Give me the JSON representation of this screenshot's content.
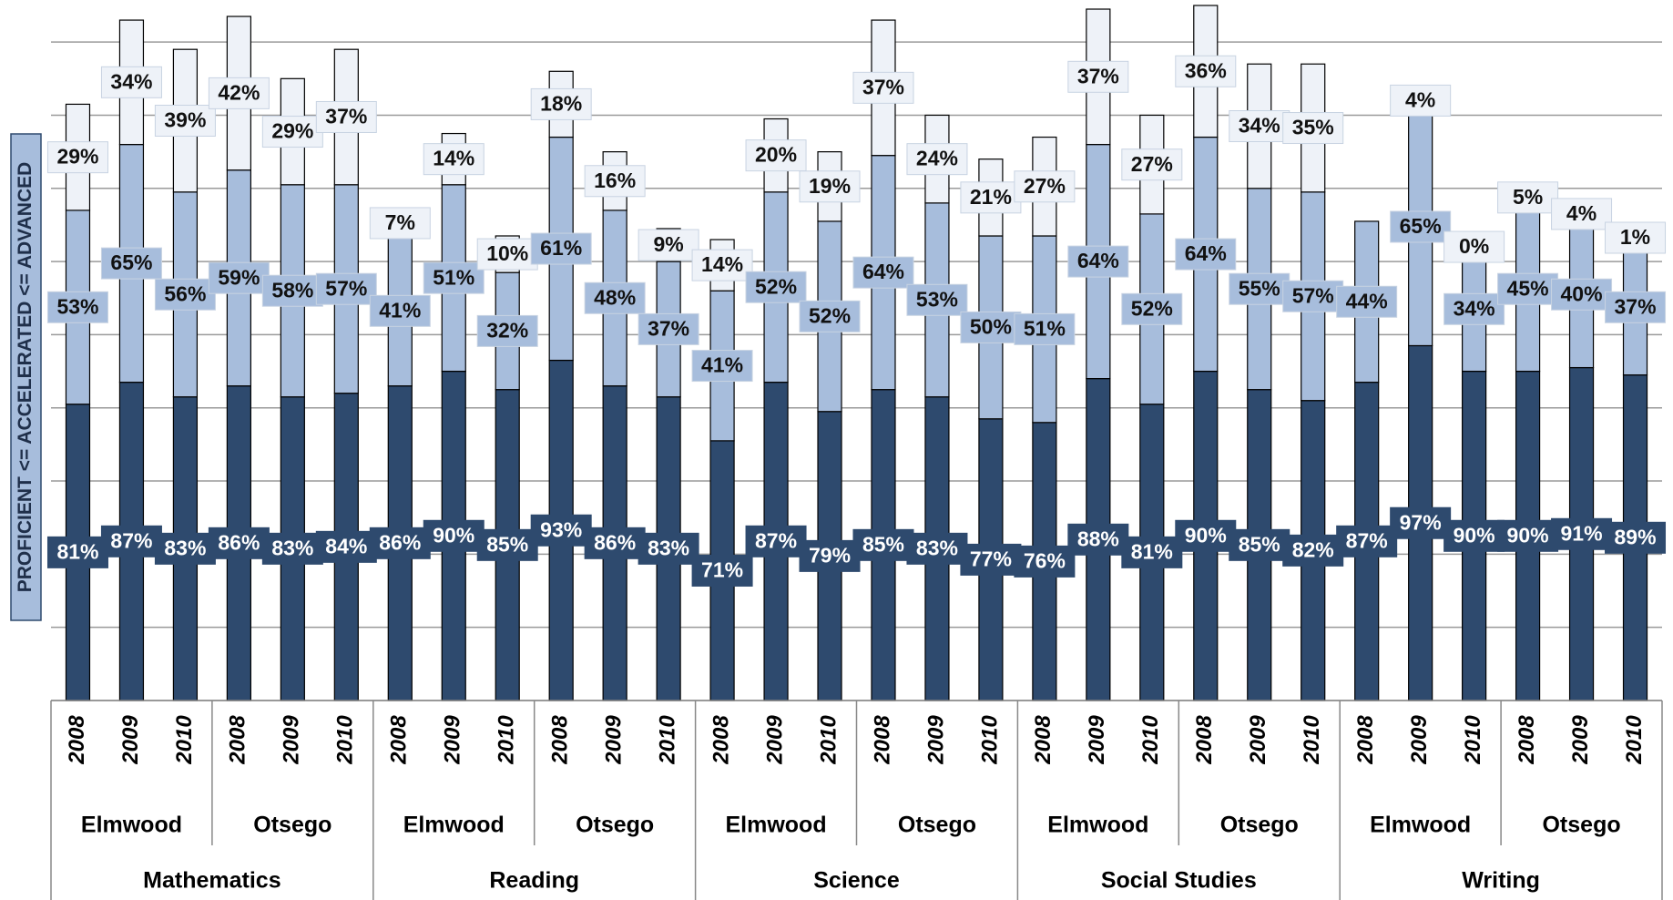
{
  "chart_data": {
    "type": "stacked_bar",
    "y_label": "PROFICIENT <= ACCELERATED <= ADVANCED",
    "categories": [
      "2008",
      "2009",
      "2010",
      "2008",
      "2009",
      "2010",
      "2008",
      "2009",
      "2010",
      "2008",
      "2009",
      "2010",
      "2008",
      "2009",
      "2010",
      "2008",
      "2009",
      "2010",
      "2008",
      "2009",
      "2010",
      "2008",
      "2009",
      "2010",
      "2008",
      "2009",
      "2010",
      "2008",
      "2009",
      "2010"
    ],
    "school_groups": [
      "Elmwood",
      "Otsego",
      "Elmwood",
      "Otsego",
      "Elmwood",
      "Otsego",
      "Elmwood",
      "Otsego",
      "Elmwood",
      "Otsego"
    ],
    "subject_groups": [
      "Mathematics",
      "Reading",
      "Science",
      "Social Studies",
      "Writing"
    ],
    "series": [
      {
        "color": "#2e4a6e",
        "values": [
          81,
          87,
          83,
          86,
          83,
          84,
          86,
          90,
          85,
          93,
          86,
          83,
          71,
          87,
          79,
          85,
          83,
          77,
          76,
          88,
          81,
          90,
          85,
          82,
          87,
          97,
          90,
          90,
          91,
          89
        ],
        "value_labels": [
          "81%",
          "87%",
          "83%",
          "86%",
          "83%",
          "84%",
          "86%",
          "90%",
          "85%",
          "93%",
          "86%",
          "83%",
          "71%",
          "87%",
          "79%",
          "85%",
          "83%",
          "77%",
          "76%",
          "88%",
          "81%",
          "90%",
          "85%",
          "82%",
          "87%",
          "97%",
          "90%",
          "90%",
          "91%",
          "89%"
        ]
      },
      {
        "color": "#a7bddc",
        "values": [
          53,
          65,
          56,
          59,
          58,
          57,
          41,
          51,
          32,
          61,
          48,
          37,
          41,
          52,
          52,
          64,
          53,
          50,
          51,
          64,
          52,
          64,
          55,
          57,
          44,
          65,
          34,
          45,
          40,
          37
        ],
        "value_labels": [
          "53%",
          "65%",
          "56%",
          "59%",
          "58%",
          "57%",
          "41%",
          "51%",
          "32%",
          "61%",
          "48%",
          "37%",
          "41%",
          "52%",
          "52%",
          "64%",
          "53%",
          "50%",
          "51%",
          "64%",
          "52%",
          "64%",
          "55%",
          "57%",
          "44%",
          "65%",
          "34%",
          "45%",
          "40%",
          "37%"
        ]
      },
      {
        "color": "#eef2f8",
        "values": [
          29,
          34,
          39,
          42,
          29,
          37,
          7,
          14,
          10,
          18,
          16,
          9,
          14,
          20,
          19,
          37,
          24,
          21,
          27,
          37,
          27,
          36,
          34,
          35,
          null,
          4,
          0,
          5,
          4,
          1
        ],
        "value_labels": [
          "29%",
          "34%",
          "39%",
          "42%",
          "29%",
          "37%",
          "7%",
          "14%",
          "10%",
          "18%",
          "16%",
          "9%",
          "14%",
          "20%",
          "19%",
          "37%",
          "24%",
          "21%",
          "27%",
          "37%",
          "27%",
          "36%",
          "34%",
          "35%",
          null,
          "4%",
          "0%",
          "5%",
          "4%",
          "1%"
        ]
      }
    ],
    "ylim": [
      0,
      190
    ],
    "yticks": [
      0,
      20,
      40,
      60,
      80,
      100,
      120,
      140,
      160,
      180
    ],
    "grid": true
  }
}
